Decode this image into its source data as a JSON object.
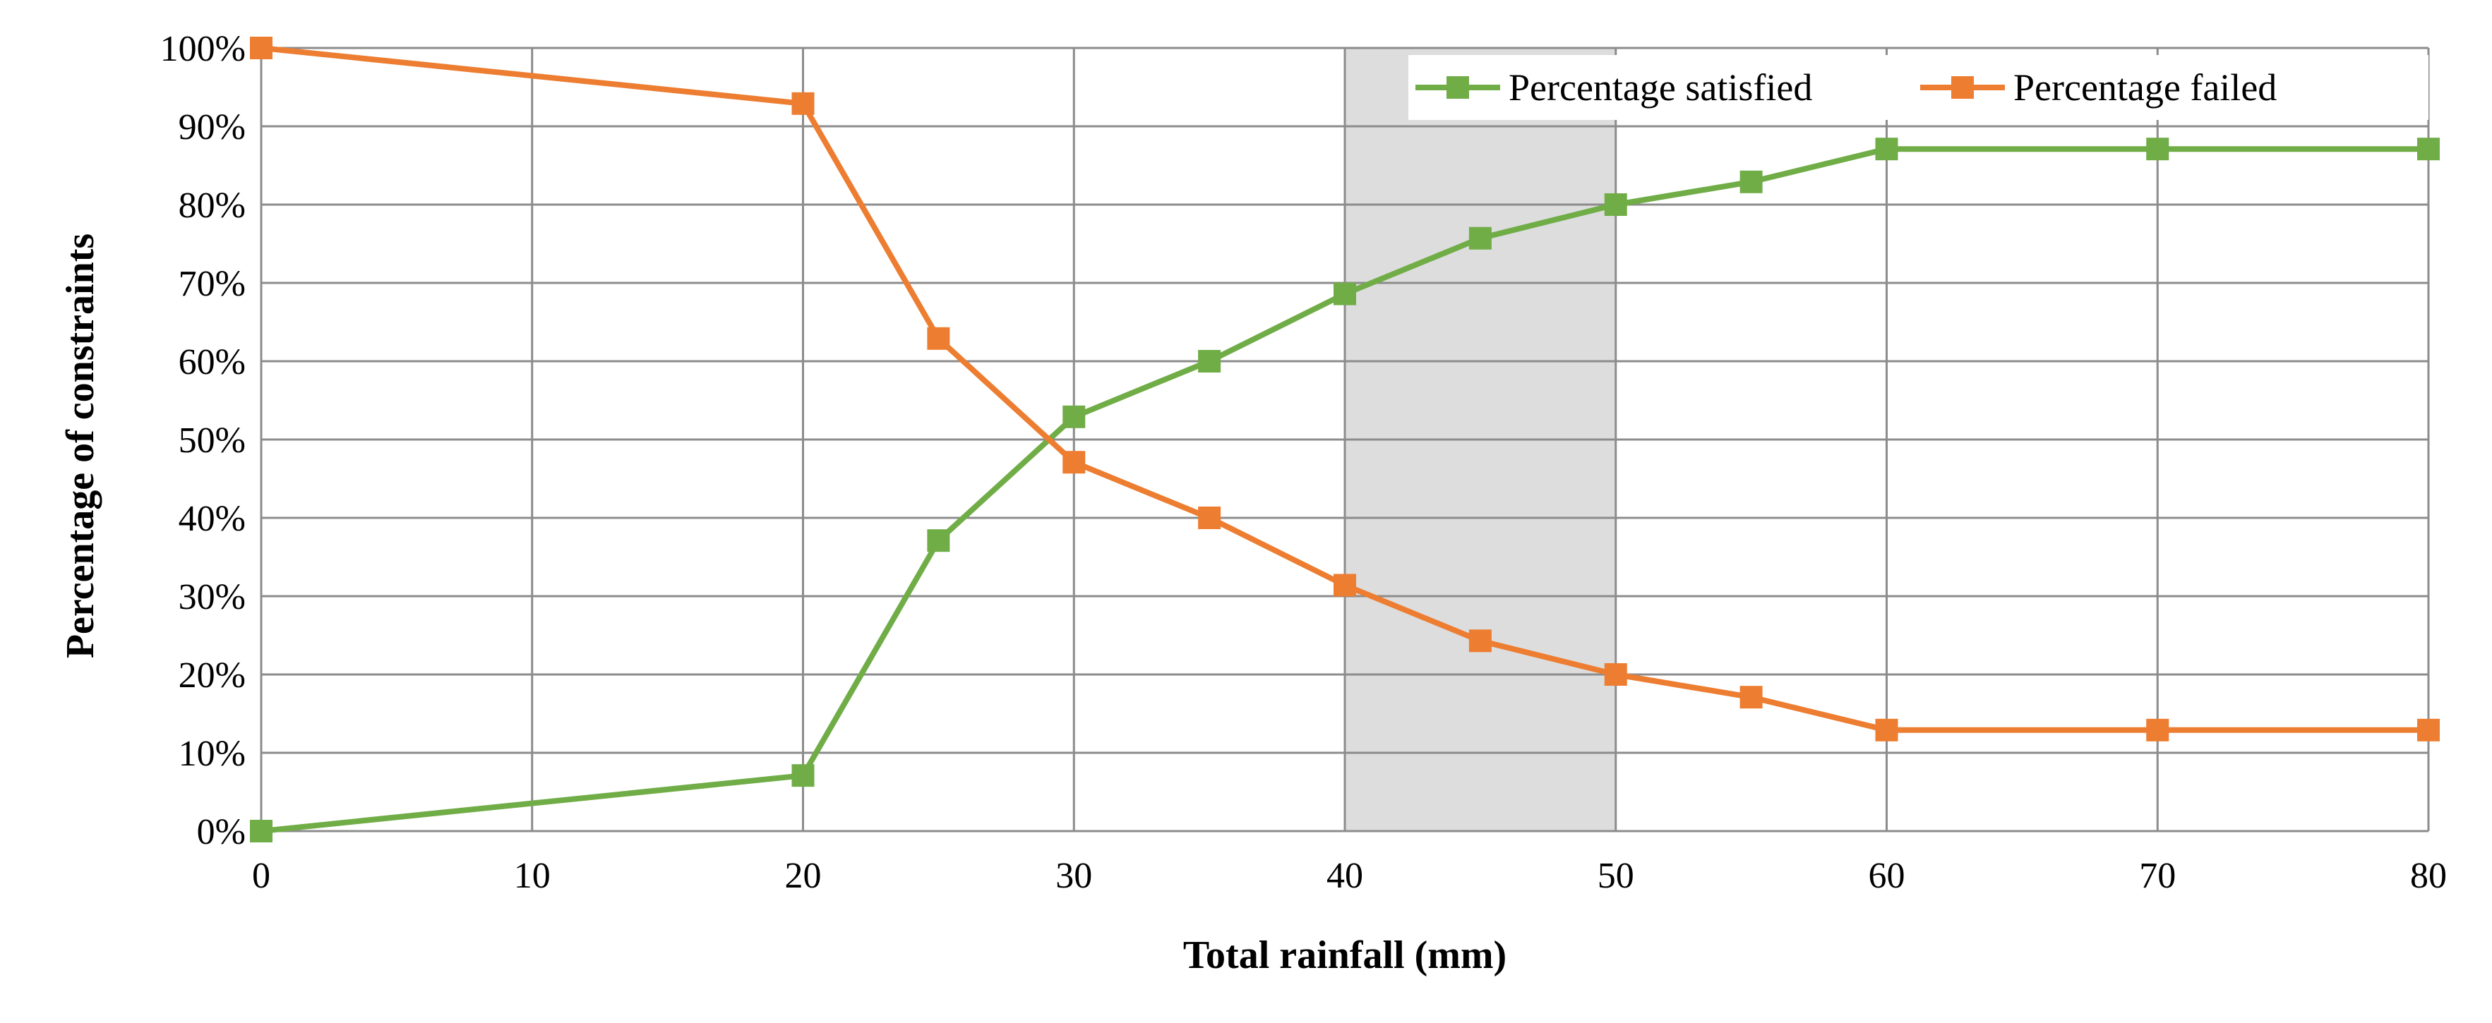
{
  "chart_data": {
    "type": "line",
    "title": "",
    "xlabel": "Total rainfall (mm)",
    "ylabel": "Percentage of constraints",
    "xlim": [
      0,
      80
    ],
    "ylim": [
      0,
      100
    ],
    "x_ticks": [
      0,
      10,
      20,
      30,
      40,
      50,
      60,
      70,
      80
    ],
    "y_ticks": [
      0,
      10,
      20,
      30,
      40,
      50,
      60,
      70,
      80,
      90,
      100
    ],
    "y_tick_suffix": "%",
    "grid": true,
    "legend_position": "top-right",
    "shaded_region": {
      "x": [
        40,
        50
      ],
      "color": "#dddddd"
    },
    "series": [
      {
        "name": "Percentage satisfied",
        "color": "#70ad47",
        "marker": "square",
        "x": [
          0,
          20,
          25,
          30,
          35,
          40,
          45,
          50,
          55,
          60,
          70,
          80
        ],
        "y": [
          0,
          7.1,
          37.1,
          52.9,
          60,
          68.6,
          75.7,
          80,
          82.9,
          87.1,
          87.1,
          87.1
        ]
      },
      {
        "name": "Percentage failed",
        "color": "#ed7d31",
        "marker": "square",
        "x": [
          0,
          20,
          25,
          30,
          35,
          40,
          45,
          50,
          55,
          60,
          70,
          80
        ],
        "y": [
          100,
          92.9,
          62.9,
          47.1,
          40,
          31.4,
          24.3,
          20,
          17.1,
          12.9,
          12.9,
          12.9
        ]
      }
    ]
  }
}
